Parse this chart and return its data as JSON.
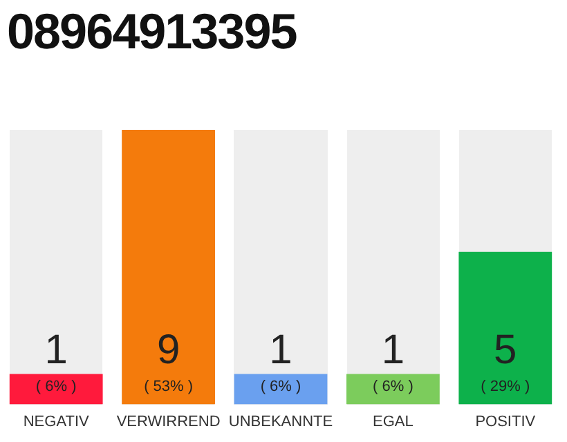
{
  "chart_data": {
    "type": "bar",
    "title": "08964913395",
    "categories": [
      "NEGATIV",
      "VERWIRREND",
      "UNBEKANNTE",
      "EGAL",
      "POSITIV"
    ],
    "values": [
      1,
      9,
      1,
      1,
      5
    ],
    "colors": [
      "#ff1a3c",
      "#f47b0c",
      "#6aa0ef",
      "#7ccc5c",
      "#0db14b"
    ],
    "data_labels": true,
    "annotations": [
      "( 6% )",
      "( 53% )",
      "( 6% )",
      "( 6% )",
      "( 29% )"
    ],
    "grid": false,
    "legend": false
  }
}
